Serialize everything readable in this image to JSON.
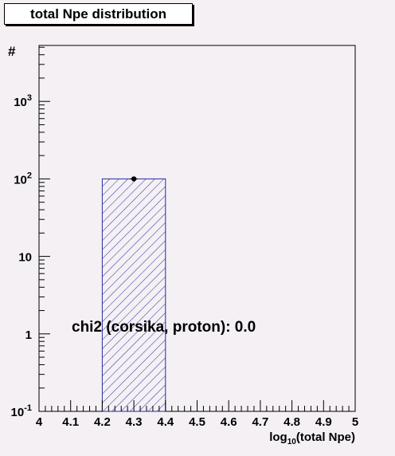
{
  "chart_data": {
    "type": "bar",
    "title": "total Npe distribution",
    "xlabel": {
      "main": "log",
      "sub": "10",
      "rest": "(total Npe)"
    },
    "ylabel": "#",
    "xlim": [
      4,
      5
    ],
    "ylim": [
      0.1,
      5000
    ],
    "yscale": "log",
    "x_ticks": [
      "4",
      "4.1",
      "4.2",
      "4.3",
      "4.4",
      "4.5",
      "4.6",
      "4.7",
      "4.8",
      "4.9",
      "5"
    ],
    "y_ticks": [
      {
        "value": 0.1,
        "base": "10",
        "exp": "-1"
      },
      {
        "value": 1,
        "base": "1",
        "exp": ""
      },
      {
        "value": 10,
        "base": "10",
        "exp": ""
      },
      {
        "value": 100,
        "base": "10",
        "exp": "2"
      },
      {
        "value": 1000,
        "base": "10",
        "exp": "3"
      }
    ],
    "bins": [
      {
        "x_low": 4.2,
        "x_high": 4.4,
        "value": 100
      }
    ],
    "points": [
      {
        "x": 4.3,
        "y": 100
      }
    ],
    "annotation": "chi2 (corsika, proton): 0.0",
    "colors": {
      "bar_hatch": "#2a2aa0",
      "background": "#f4f0f4",
      "frame": "#000000"
    },
    "grid": false,
    "legend": "none"
  }
}
